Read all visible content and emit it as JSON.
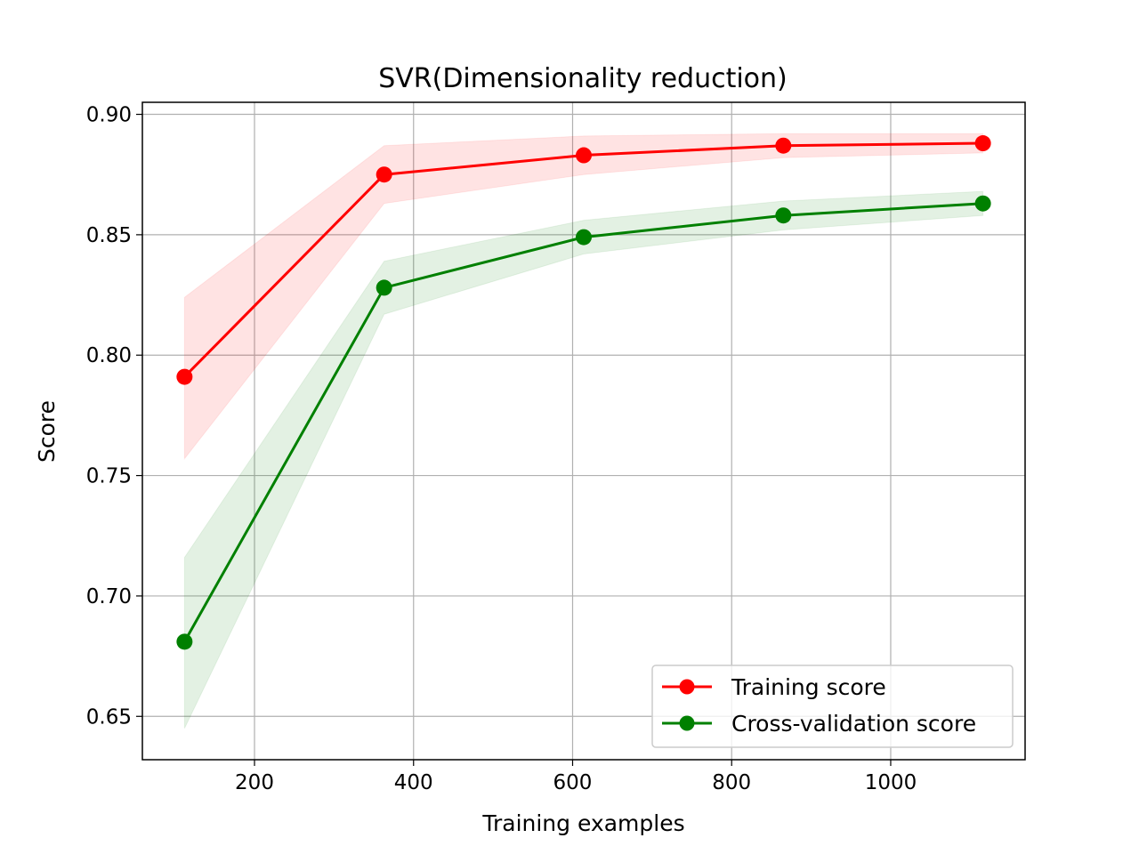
{
  "chart_data": {
    "type": "line",
    "title": "SVR(Dimensionality reduction)",
    "xlabel": "Training examples",
    "ylabel": "Score",
    "x": [
      112,
      363,
      614,
      865,
      1116
    ],
    "xlim": [
      59,
      1169
    ],
    "ylim": [
      0.632,
      0.905
    ],
    "xticks": [
      200,
      400,
      600,
      800,
      1000
    ],
    "xtick_labels": [
      "200",
      "400",
      "600",
      "800",
      "1000"
    ],
    "yticks": [
      0.65,
      0.7,
      0.75,
      0.8,
      0.85,
      0.9
    ],
    "ytick_labels": [
      "0.65",
      "0.70",
      "0.75",
      "0.80",
      "0.85",
      "0.90"
    ],
    "grid": true,
    "legend_position": "lower-right",
    "series": [
      {
        "name": "Training score",
        "color": "#ff0000",
        "values": [
          0.791,
          0.875,
          0.883,
          0.887,
          0.888
        ],
        "band_lower": [
          0.757,
          0.863,
          0.875,
          0.882,
          0.884
        ],
        "band_upper": [
          0.824,
          0.887,
          0.891,
          0.892,
          0.892
        ]
      },
      {
        "name": "Cross-validation score",
        "color": "#008000",
        "values": [
          0.681,
          0.828,
          0.849,
          0.858,
          0.863
        ],
        "band_lower": [
          0.645,
          0.817,
          0.842,
          0.852,
          0.858
        ],
        "band_upper": [
          0.716,
          0.839,
          0.856,
          0.864,
          0.868
        ]
      }
    ]
  }
}
